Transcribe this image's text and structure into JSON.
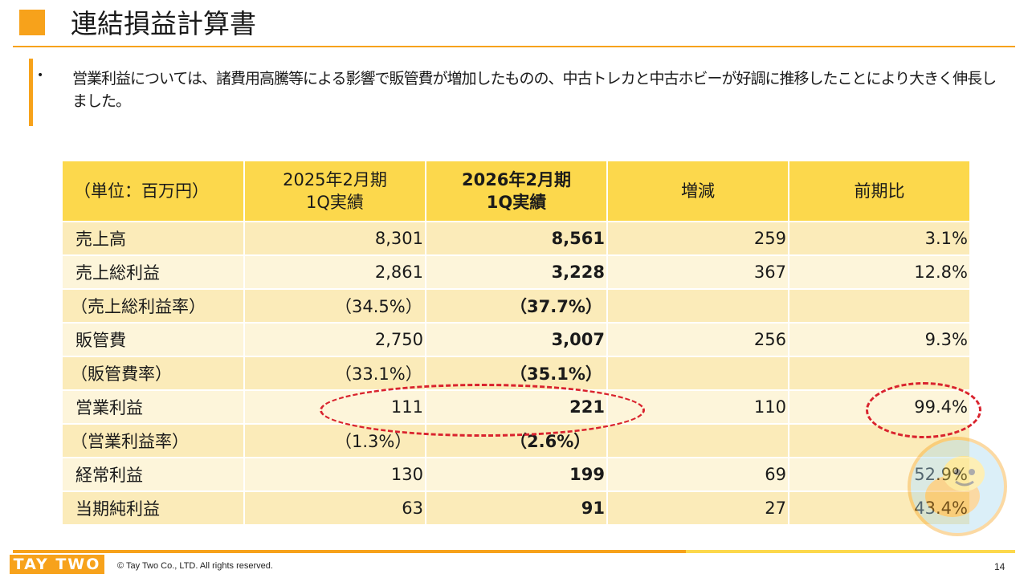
{
  "title": "連結損益計算書",
  "bullet_text": "営業利益については、諸費用高騰等による影響で販管費が増加したものの、中古トレカと中古ホビーが好調に推移したことにより大きく伸長しました。",
  "table": {
    "header": {
      "unit": "（単位：百万円）",
      "prev_line1": "2025年2月期",
      "prev_line2": "1Q実績",
      "curr_line1": "2026年2月期",
      "curr_line2": "1Q実績",
      "diff": "増減",
      "ratio": "前期比"
    },
    "rows": [
      {
        "label": "売上高",
        "prev": "8,301",
        "curr": "8,561",
        "diff": "259",
        "ratio": "3.1%"
      },
      {
        "label": "売上総利益",
        "prev": "2,861",
        "curr": "3,228",
        "diff": "367",
        "ratio": "12.8%"
      },
      {
        "label": "（売上総利益率）",
        "prev": "（34.5%）",
        "curr": "（37.7%）",
        "diff": "",
        "ratio": ""
      },
      {
        "label": "販管費",
        "prev": "2,750",
        "curr": "3,007",
        "diff": "256",
        "ratio": "9.3%"
      },
      {
        "label": "（販管費率）",
        "prev": "（33.1%）",
        "curr": "（35.1%）",
        "diff": "",
        "ratio": ""
      },
      {
        "label": "営業利益",
        "prev": "111",
        "curr": "221",
        "diff": "110",
        "ratio": "99.4%"
      },
      {
        "label": "（営業利益率）",
        "prev": "（1.3%）",
        "curr": "（2.6%）",
        "diff": "",
        "ratio": ""
      },
      {
        "label": "経常利益",
        "prev": "130",
        "curr": "199",
        "diff": "69",
        "ratio": "52.9%"
      },
      {
        "label": "当期純利益",
        "prev": "63",
        "curr": "91",
        "diff": "27",
        "ratio": "43.4%"
      }
    ]
  },
  "footer": {
    "logo_text": "TAY TWO",
    "copyright": "© Tay Two Co., LTD. All rights reserved.",
    "page_number": "14"
  },
  "colors": {
    "accent_orange": "#f7a21b",
    "header_yellow": "#fcd84c",
    "row_dark": "#fbebb9",
    "row_light": "#fdf5da",
    "highlight_red": "#d9232e"
  }
}
